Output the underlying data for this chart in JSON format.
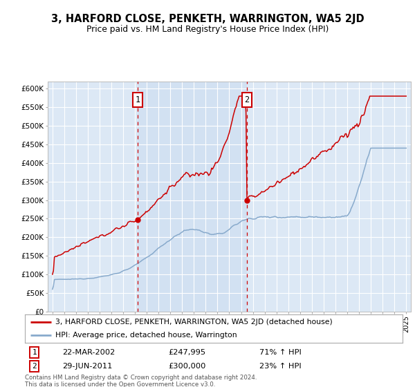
{
  "title": "3, HARFORD CLOSE, PENKETH, WARRINGTON, WA5 2JD",
  "subtitle": "Price paid vs. HM Land Registry's House Price Index (HPI)",
  "legend_line1": "3, HARFORD CLOSE, PENKETH, WARRINGTON, WA5 2JD (detached house)",
  "legend_line2": "HPI: Average price, detached house, Warrington",
  "sale1_date": "22-MAR-2002",
  "sale1_price": 247995,
  "sale1_pct": "71% ↑ HPI",
  "sale2_date": "29-JUN-2011",
  "sale2_price": 300000,
  "sale2_pct": "23% ↑ HPI",
  "footer": "Contains HM Land Registry data © Crown copyright and database right 2024.\nThis data is licensed under the Open Government Licence v3.0.",
  "sale1_year": 2002.22,
  "sale2_year": 2011.49,
  "ylim": [
    0,
    620000
  ],
  "xlim": [
    1994.6,
    2025.4
  ],
  "red_color": "#cc0000",
  "blue_color": "#88aacc",
  "bg_color": "#dce8f5",
  "grid_color": "#ffffff",
  "highlight_bg": "#ccddf0"
}
